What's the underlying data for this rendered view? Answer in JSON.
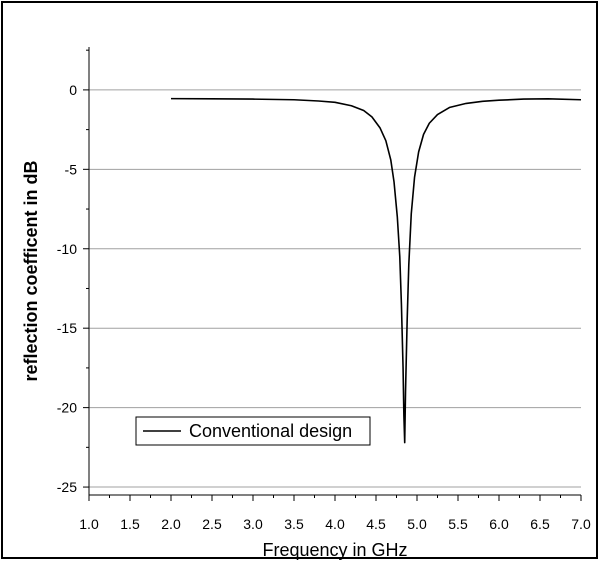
{
  "chart_data": {
    "type": "line",
    "xlabel": "Frequency in GHz",
    "ylabel": "reflection coefficent in dB",
    "xlim": [
      1.0,
      7.0
    ],
    "ylim": [
      -25.5,
      2.7
    ],
    "x_ticks": [
      "1.0",
      "1.5",
      "2.0",
      "2.5",
      "3.0",
      "3.5",
      "4.0",
      "4.5",
      "5.0",
      "5.5",
      "6.0",
      "6.5",
      "7.0"
    ],
    "y_ticks": [
      "0",
      "-5",
      "-10",
      "-15",
      "-20",
      "-25"
    ],
    "grid": "horizontal",
    "legend_position": "bottom-left",
    "colors": {
      "line": "#000000",
      "grid": "#a0a0a0",
      "axes": "#000000"
    },
    "series": [
      {
        "name": "Conventional design",
        "x": [
          2.0,
          2.5,
          3.0,
          3.5,
          3.8,
          4.0,
          4.2,
          4.35,
          4.45,
          4.55,
          4.62,
          4.68,
          4.72,
          4.76,
          4.79,
          4.81,
          4.83,
          4.84,
          4.85,
          4.86,
          4.88,
          4.9,
          4.93,
          4.97,
          5.02,
          5.08,
          5.15,
          5.25,
          5.4,
          5.6,
          5.8,
          6.0,
          6.3,
          6.6,
          7.0
        ],
        "y": [
          -0.55,
          -0.56,
          -0.58,
          -0.62,
          -0.7,
          -0.78,
          -1.0,
          -1.3,
          -1.7,
          -2.4,
          -3.2,
          -4.4,
          -5.8,
          -8.0,
          -10.5,
          -13.5,
          -17.5,
          -20.5,
          -22.2,
          -19.0,
          -14.5,
          -11.0,
          -7.8,
          -5.5,
          -3.9,
          -2.8,
          -2.1,
          -1.55,
          -1.1,
          -0.85,
          -0.72,
          -0.65,
          -0.58,
          -0.56,
          -0.62
        ]
      }
    ]
  }
}
